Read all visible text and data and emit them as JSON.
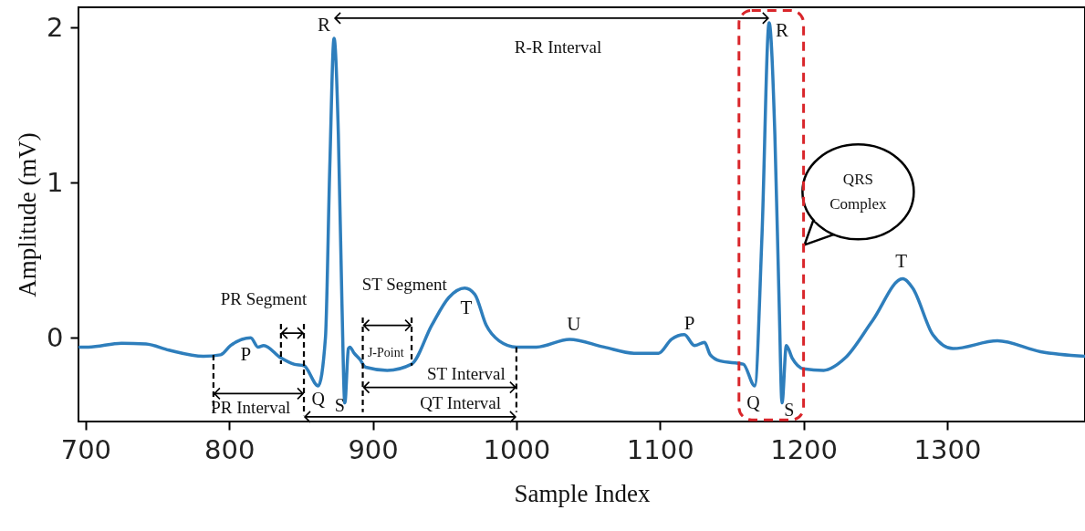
{
  "chart_data": {
    "type": "line",
    "xlabel": "Sample Index",
    "ylabel": "Amplitude (mV)",
    "x": [
      695.5,
      702,
      725,
      742,
      758,
      782,
      794,
      801,
      815,
      820,
      824,
      836,
      845,
      852,
      862,
      867,
      870,
      873,
      876,
      878.5,
      880.5,
      883,
      884,
      887,
      891,
      895,
      910,
      927,
      941,
      953,
      964,
      971,
      979,
      988,
      1000,
      1014,
      1037,
      1061,
      1082,
      1099,
      1108,
      1117,
      1124,
      1131,
      1135,
      1142,
      1158,
      1166,
      1171,
      1176,
      1180,
      1183,
      1185,
      1188,
      1192,
      1200,
      1214,
      1229,
      1248,
      1269,
      1276,
      1290,
      1304,
      1335,
      1365,
      1396
    ],
    "series": [
      {
        "color": "#2e7ebc",
        "values": [
          -0.06,
          -0.06,
          -0.035,
          -0.04,
          -0.08,
          -0.12,
          -0.11,
          -0.05,
          0.0,
          -0.06,
          -0.05,
          -0.13,
          -0.17,
          -0.18,
          -0.31,
          0.0,
          1.09,
          1.93,
          1.31,
          0.22,
          -0.42,
          -0.07,
          -0.06,
          -0.1,
          -0.14,
          -0.19,
          -0.21,
          -0.17,
          0.08,
          0.26,
          0.32,
          0.28,
          0.08,
          -0.02,
          -0.06,
          -0.06,
          -0.01,
          -0.06,
          -0.1,
          -0.1,
          -0.01,
          0.02,
          -0.05,
          -0.03,
          -0.11,
          -0.15,
          -0.17,
          -0.31,
          0.65,
          2.03,
          1.31,
          0.22,
          -0.42,
          -0.05,
          -0.13,
          -0.2,
          -0.21,
          -0.13,
          0.11,
          0.38,
          0.32,
          0.02,
          -0.07,
          -0.02,
          -0.09,
          -0.12
        ]
      }
    ],
    "xlim": [
      695,
      1396
    ],
    "ylim": [
      -0.54,
      2.13
    ],
    "xticks": [
      700,
      800,
      900,
      1000,
      1100,
      1200,
      1300
    ],
    "yticks": [
      0,
      1,
      2
    ],
    "annotations": [
      "R-R Interval",
      "R",
      "R",
      "QRS Complex",
      "PR Segment",
      "ST Segment",
      "T",
      "T",
      "U",
      "P",
      "P",
      "J-Point",
      "ST Interval",
      {
        "text": "PR Interval",
        "x": 789,
        "y": -0.11
      },
      "Q",
      "S",
      {
        "text": "QT Interval",
        "x": 1000,
        "y": -0.06
      },
      "Q",
      "S"
    ],
    "grid": false
  }
}
